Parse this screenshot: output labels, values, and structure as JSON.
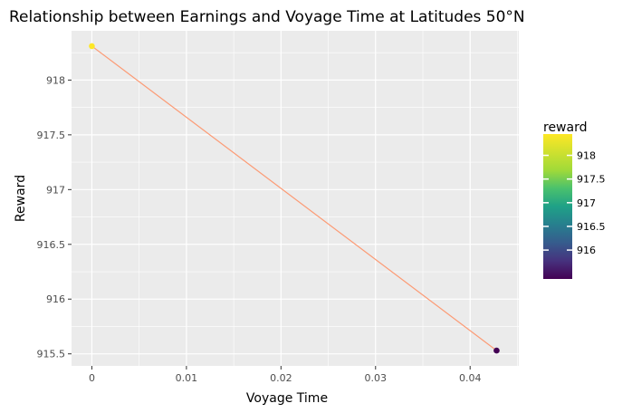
{
  "chart_data": {
    "type": "line",
    "title": "Relationship between Earnings and Voyage Time at Latitudes 50°N",
    "xlabel": "Voyage Time",
    "ylabel": "Reward",
    "xlim": [
      -0.00215,
      0.04515
    ],
    "ylim": [
      915.39,
      918.45
    ],
    "x_ticks": [
      0,
      0.01,
      0.02,
      0.03,
      0.04
    ],
    "x_tick_labels": [
      "0",
      "0.01",
      "0.02",
      "0.03",
      "0.04"
    ],
    "y_ticks": [
      915.5,
      916,
      916.5,
      917,
      917.5,
      918
    ],
    "y_tick_labels": [
      "915.5",
      "916",
      "916.5",
      "917",
      "917.5",
      "918"
    ],
    "grid": true,
    "line_color": "#fc9a74",
    "points": [
      {
        "x": 0.0,
        "y": 918.31,
        "reward": 918.31
      },
      {
        "x": 0.0428,
        "y": 915.53,
        "reward": 915.53
      }
    ],
    "legend": {
      "title": "reward",
      "placement": "right",
      "type": "colorbar",
      "colormap": "viridis",
      "range": [
        915.53,
        918.31
      ],
      "ticks": [
        916,
        916.5,
        917,
        917.5,
        918
      ],
      "tick_labels": [
        "916",
        "916.5",
        "917",
        "917.5",
        "918"
      ]
    },
    "colors": {
      "panel_background": "#ebebeb",
      "grid_major": "#ffffff",
      "point_high": "#fde725",
      "point_low": "#440154"
    }
  }
}
